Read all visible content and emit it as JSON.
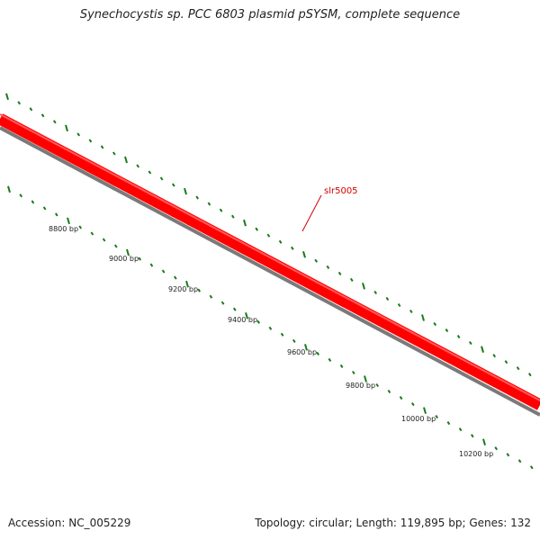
{
  "title": "Synechocystis sp. PCC 6803 plasmid pSYSM, complete sequence",
  "gene_label": "slr5005",
  "bp_labels": [
    "8800 bp",
    "9000 bp",
    "9200 bp",
    "9400 bp",
    "9600 bp",
    "9800 bp",
    "10000 bp",
    "10200 bp"
  ],
  "footer": {
    "accession": "Accession: NC_005229",
    "stats": "Topology: circular; Length: 119,895 bp; Genes: 132"
  },
  "colors": {
    "gene": "#ff0000",
    "backbone": "#7a7a7a",
    "ticks": "#1a7a1a",
    "label": "#d40000"
  }
}
